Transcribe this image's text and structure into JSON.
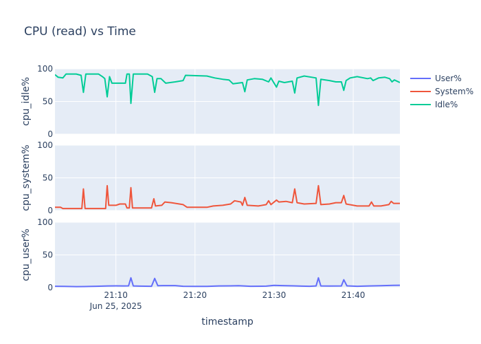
{
  "chart_data": {
    "type": "line",
    "title": "CPU (read) vs Time",
    "xlabel": "timestamp",
    "x_ticks": [
      "21:10",
      "21:20",
      "21:30",
      "21:40"
    ],
    "x_tick_minutes": [
      10,
      20,
      30,
      40
    ],
    "x_date_label": "Jun 25, 2025",
    "x_range_minutes": [
      2.3,
      45.9
    ],
    "legend": {
      "placement": "top-right"
    },
    "grid": true,
    "panels": [
      {
        "name": "idle",
        "ylabel": "cpu_idle%",
        "ylim": [
          0,
          100
        ],
        "yticks": [
          0,
          50,
          100
        ],
        "series": "Idle%"
      },
      {
        "name": "system",
        "ylabel": "cpu_system%",
        "ylim": [
          0,
          100
        ],
        "yticks": [
          0,
          50,
          100
        ],
        "series": "System%"
      },
      {
        "name": "user",
        "ylabel": "cpu_user%",
        "ylim": [
          0,
          100
        ],
        "yticks": [
          0,
          50,
          100
        ],
        "series": "User%"
      }
    ],
    "series": [
      {
        "name": "User%",
        "color": "#636efa",
        "points": [
          [
            2.3,
            2
          ],
          [
            3.5,
            1.8
          ],
          [
            5,
            1.5
          ],
          [
            6,
            1.6
          ],
          [
            7.5,
            2
          ],
          [
            9,
            2.5
          ],
          [
            10,
            2.6
          ],
          [
            11,
            2.5
          ],
          [
            11.6,
            2.6
          ],
          [
            11.9,
            15
          ],
          [
            12.2,
            2.5
          ],
          [
            13,
            2.2
          ],
          [
            14.5,
            2
          ],
          [
            14.9,
            14
          ],
          [
            15.3,
            2.8
          ],
          [
            16,
            3
          ],
          [
            17.5,
            3
          ],
          [
            18.5,
            2
          ],
          [
            20,
            1.8
          ],
          [
            21.5,
            1.8
          ],
          [
            23,
            2.5
          ],
          [
            24.5,
            2.6
          ],
          [
            25.5,
            2.8
          ],
          [
            27,
            2
          ],
          [
            29,
            2.2
          ],
          [
            30,
            3.5
          ],
          [
            31,
            3
          ],
          [
            32.5,
            2.6
          ],
          [
            33.5,
            2.2
          ],
          [
            34.5,
            2
          ],
          [
            35.3,
            2.5
          ],
          [
            35.6,
            15
          ],
          [
            35.9,
            2.5
          ],
          [
            37,
            2.3
          ],
          [
            38.5,
            2.5
          ],
          [
            38.8,
            12
          ],
          [
            39.2,
            2.6
          ],
          [
            40.5,
            2
          ],
          [
            42,
            2.5
          ],
          [
            43.5,
            2.8
          ],
          [
            45,
            3.5
          ],
          [
            45.9,
            3.6
          ]
        ]
      },
      {
        "name": "System%",
        "color": "#ef553b",
        "points": [
          [
            2.3,
            5
          ],
          [
            3,
            5
          ],
          [
            3.3,
            3
          ],
          [
            5,
            3
          ],
          [
            5.7,
            3
          ],
          [
            5.9,
            33
          ],
          [
            6.1,
            3
          ],
          [
            8,
            3
          ],
          [
            8.7,
            3
          ],
          [
            8.9,
            38
          ],
          [
            9.1,
            8
          ],
          [
            10,
            8
          ],
          [
            10.5,
            10
          ],
          [
            11.2,
            10
          ],
          [
            11.4,
            4
          ],
          [
            11.7,
            4
          ],
          [
            11.9,
            35
          ],
          [
            12.1,
            4
          ],
          [
            14.5,
            4
          ],
          [
            14.8,
            18
          ],
          [
            15,
            7
          ],
          [
            15.8,
            8
          ],
          [
            16.2,
            13
          ],
          [
            17,
            12
          ],
          [
            18.5,
            9
          ],
          [
            19,
            5
          ],
          [
            21.5,
            5
          ],
          [
            22.3,
            7
          ],
          [
            23.5,
            8
          ],
          [
            24.5,
            10
          ],
          [
            25,
            15
          ],
          [
            25.8,
            13
          ],
          [
            26,
            8
          ],
          [
            26.3,
            20
          ],
          [
            26.6,
            8
          ],
          [
            28,
            7
          ],
          [
            29,
            9
          ],
          [
            29.3,
            15
          ],
          [
            29.6,
            9
          ],
          [
            30.3,
            16
          ],
          [
            30.6,
            13
          ],
          [
            31.5,
            14
          ],
          [
            32.3,
            12
          ],
          [
            32.6,
            33
          ],
          [
            32.9,
            12
          ],
          [
            33.8,
            10
          ],
          [
            35.3,
            11
          ],
          [
            35.6,
            38
          ],
          [
            35.9,
            9
          ],
          [
            37,
            10
          ],
          [
            37.8,
            12
          ],
          [
            38.5,
            12
          ],
          [
            38.8,
            23
          ],
          [
            39.1,
            10
          ],
          [
            40.5,
            7
          ],
          [
            42,
            7
          ],
          [
            42.3,
            13
          ],
          [
            42.6,
            7
          ],
          [
            43.5,
            7
          ],
          [
            44.5,
            9
          ],
          [
            44.8,
            14
          ],
          [
            45.1,
            11
          ],
          [
            45.9,
            11
          ]
        ]
      },
      {
        "name": "Idle%",
        "color": "#00cc96",
        "points": [
          [
            2.3,
            91
          ],
          [
            2.7,
            87
          ],
          [
            3.3,
            86
          ],
          [
            3.7,
            92
          ],
          [
            5,
            92
          ],
          [
            5.6,
            90
          ],
          [
            5.9,
            64
          ],
          [
            6.2,
            92
          ],
          [
            7.8,
            92
          ],
          [
            8.3,
            88
          ],
          [
            8.6,
            85
          ],
          [
            8.9,
            57
          ],
          [
            9.2,
            88
          ],
          [
            9.5,
            78
          ],
          [
            10.5,
            78
          ],
          [
            11.2,
            78
          ],
          [
            11.4,
            92
          ],
          [
            11.7,
            92
          ],
          [
            11.9,
            47
          ],
          [
            12.2,
            92
          ],
          [
            14,
            92
          ],
          [
            14.6,
            88
          ],
          [
            14.9,
            64
          ],
          [
            15.2,
            85
          ],
          [
            15.7,
            85
          ],
          [
            16.3,
            78
          ],
          [
            17.5,
            80
          ],
          [
            18.5,
            82
          ],
          [
            18.8,
            90
          ],
          [
            21.5,
            89
          ],
          [
            22.5,
            86
          ],
          [
            23.5,
            84
          ],
          [
            24.3,
            83
          ],
          [
            24.8,
            77
          ],
          [
            26,
            79
          ],
          [
            26.3,
            65
          ],
          [
            26.6,
            83
          ],
          [
            27.5,
            85
          ],
          [
            28.5,
            84
          ],
          [
            29.3,
            80
          ],
          [
            29.6,
            86
          ],
          [
            30.3,
            72
          ],
          [
            30.6,
            81
          ],
          [
            31.3,
            79
          ],
          [
            32.3,
            81
          ],
          [
            32.6,
            63
          ],
          [
            32.9,
            86
          ],
          [
            33.8,
            89
          ],
          [
            35.3,
            86
          ],
          [
            35.6,
            44
          ],
          [
            35.9,
            84
          ],
          [
            37,
            82
          ],
          [
            37.8,
            80
          ],
          [
            38.5,
            80
          ],
          [
            38.8,
            67
          ],
          [
            39.1,
            82
          ],
          [
            39.6,
            86
          ],
          [
            40.5,
            88
          ],
          [
            41.8,
            85
          ],
          [
            42.2,
            86
          ],
          [
            42.5,
            82
          ],
          [
            43.2,
            86
          ],
          [
            44,
            87
          ],
          [
            44.6,
            85
          ],
          [
            44.9,
            80
          ],
          [
            45.2,
            83
          ],
          [
            45.9,
            79
          ]
        ]
      }
    ]
  }
}
